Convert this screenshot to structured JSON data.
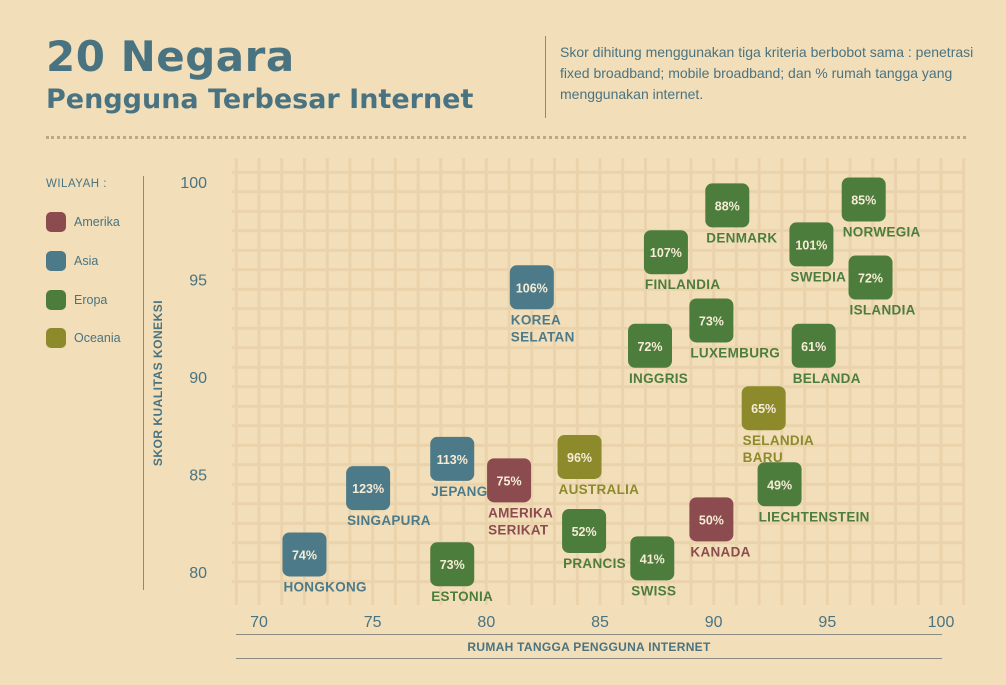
{
  "title": "20 Negara",
  "subtitle": "Pengguna Terbesar Internet",
  "description": "Skor dihitung menggunakan tiga kriteria berbobot sama : penetrasi fixed broadband; mobile broadband; dan % rumah tangga yang menggunakan internet.",
  "legend": {
    "title": "WILAYAH :",
    "items": [
      {
        "label": "Amerika",
        "color": "#8c4b4e"
      },
      {
        "label": "Asia",
        "color": "#4d7a88"
      },
      {
        "label": "Eropa",
        "color": "#4d7d3c"
      },
      {
        "label": "Oceania",
        "color": "#8c8a2b"
      }
    ]
  },
  "colors": {
    "background": "#f2dfb9",
    "grid": "#ead2ab",
    "axis_text": "#4a7381"
  },
  "chart_data": {
    "type": "scatter",
    "xlabel": "RUMAH TANGGA PENGGUNA INTERNET",
    "ylabel": "SKOR KUALITAS KONEKSI",
    "xlim": [
      70,
      100
    ],
    "ylim": [
      80,
      100
    ],
    "xticks": [
      "70",
      "75",
      "80",
      "85",
      "90",
      "95",
      "100"
    ],
    "yticks": [
      "100",
      "95",
      "90",
      "85",
      "80"
    ],
    "grid": true,
    "points": [
      {
        "name": "HONGKONG",
        "region": "Asia",
        "label": "74%",
        "x": 72,
        "y": 80.9
      },
      {
        "name": "SINGAPURA",
        "region": "Asia",
        "label": "123%",
        "x": 74.8,
        "y": 84.3
      },
      {
        "name": "JEPANG",
        "region": "Asia",
        "label": "113%",
        "x": 78.5,
        "y": 85.8
      },
      {
        "name": "KOREA SELATAN",
        "region": "Asia",
        "label": "106%",
        "x": 82,
        "y": 94.6
      },
      {
        "name": "AMERIKA SERIKAT",
        "region": "Amerika",
        "label": "75%",
        "x": 81,
        "y": 84.7
      },
      {
        "name": "KANADA",
        "region": "Amerika",
        "label": "50%",
        "x": 89.9,
        "y": 82.7
      },
      {
        "name": "AUSTRALIA",
        "region": "Oceania",
        "label": "96%",
        "x": 84.1,
        "y": 85.9
      },
      {
        "name": "SELANDIA BARU",
        "region": "Oceania",
        "label": "65%",
        "x": 92.2,
        "y": 88.4
      },
      {
        "name": "ESTONIA",
        "region": "Eropa",
        "label": "73%",
        "x": 78.5,
        "y": 80.4
      },
      {
        "name": "PRANCIS",
        "region": "Eropa",
        "label": "52%",
        "x": 84.3,
        "y": 82.1
      },
      {
        "name": "SWISS",
        "region": "Eropa",
        "label": "41%",
        "x": 87.3,
        "y": 80.7
      },
      {
        "name": "INGGRIS",
        "region": "Eropa",
        "label": "72%",
        "x": 87.2,
        "y": 91.6
      },
      {
        "name": "FINLANDIA",
        "region": "Eropa",
        "label": "107%",
        "x": 87.9,
        "y": 96.4
      },
      {
        "name": "LUXEMBURG",
        "region": "Eropa",
        "label": "73%",
        "x": 89.9,
        "y": 92.9
      },
      {
        "name": "DENMARK",
        "region": "Eropa",
        "label": "88%",
        "x": 90.6,
        "y": 98.8
      },
      {
        "name": "SWEDIA",
        "region": "Eropa",
        "label": "101%",
        "x": 94.3,
        "y": 96.8
      },
      {
        "name": "NORWEGIA",
        "region": "Eropa",
        "label": "85%",
        "x": 96.6,
        "y": 99.1
      },
      {
        "name": "ISLANDIA",
        "region": "Eropa",
        "label": "72%",
        "x": 96.9,
        "y": 95.1
      },
      {
        "name": "BELANDA",
        "region": "Eropa",
        "label": "61%",
        "x": 94.4,
        "y": 91.6
      },
      {
        "name": "LIECHTENSTEIN",
        "region": "Eropa",
        "label": "49%",
        "x": 92.9,
        "y": 84.5
      }
    ]
  }
}
